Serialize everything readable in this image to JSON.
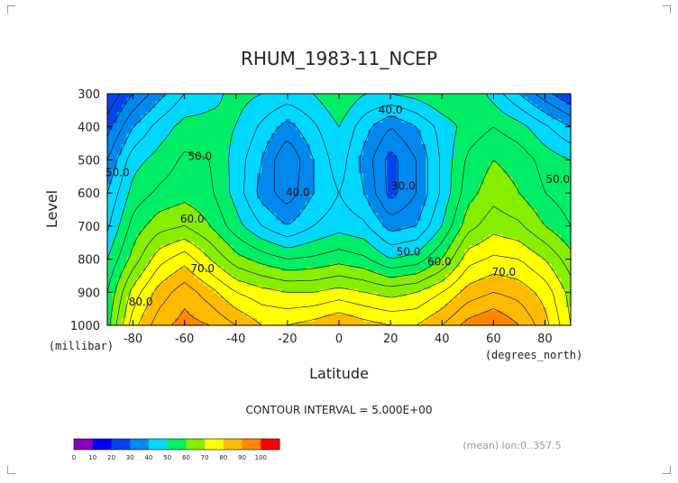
{
  "chart_data": {
    "type": "heatmap",
    "subtype": "filled-contour",
    "title": "RHUM_1983-11_NCEP",
    "xlabel": "Latitude",
    "ylabel": "Level",
    "x_unit": "(degrees_north)",
    "y_unit": "(millibar)",
    "xlim": [
      -90,
      90
    ],
    "ylim": [
      1000,
      300
    ],
    "x_ticks": [
      -80,
      -60,
      -40,
      -20,
      0,
      20,
      40,
      60,
      80
    ],
    "x_tick_labels": [
      "-80",
      "-60",
      "-40",
      "-20",
      "0",
      "20",
      "40",
      "60",
      "80"
    ],
    "y_ticks": [
      300,
      400,
      500,
      600,
      700,
      800,
      900,
      1000
    ],
    "y_tick_labels": [
      "300",
      "400",
      "500",
      "600",
      "700",
      "800",
      "900",
      "1000"
    ],
    "contour_interval_text": "CONTOUR INTERVAL = 5.000E+00",
    "footer_text": "(mean) lon:0..357.5",
    "contour_labels": [
      {
        "text": "40.0",
        "lat": 20,
        "level": 350
      },
      {
        "text": "50.0",
        "lat": -54,
        "level": 490
      },
      {
        "text": "40.0",
        "lat": -16,
        "level": 600
      },
      {
        "text": "30.0",
        "lat": 25,
        "level": 580
      },
      {
        "text": "50.0",
        "lat": -86,
        "level": 540
      },
      {
        "text": "50.0",
        "lat": 85,
        "level": 560
      },
      {
        "text": "60.0",
        "lat": -57,
        "level": 680
      },
      {
        "text": "50.0",
        "lat": 27,
        "level": 780
      },
      {
        "text": "60.0",
        "lat": 39,
        "level": 810
      },
      {
        "text": "70.0",
        "lat": -53,
        "level": 830
      },
      {
        "text": "70.0",
        "lat": 64,
        "level": 840
      },
      {
        "text": "80.0",
        "lat": -77,
        "level": 930
      }
    ],
    "levels": [
      0,
      10,
      20,
      30,
      40,
      50,
      60,
      70,
      80,
      90,
      100
    ],
    "colorbar_labels": [
      "0",
      "10",
      "20",
      "30",
      "40",
      "50",
      "60",
      "70",
      "80",
      "90",
      "100"
    ],
    "colors": [
      "#8800bb",
      "#0000ff",
      "#0044ee",
      "#0088ee",
      "#00d8ff",
      "#00ee66",
      "#88ee00",
      "#ffff00",
      "#ffbb00",
      "#ff8800",
      "#ff0000"
    ],
    "lat": [
      -90,
      -80,
      -70,
      -60,
      -50,
      -40,
      -30,
      -20,
      -10,
      0,
      10,
      20,
      30,
      40,
      50,
      60,
      70,
      80,
      90
    ],
    "pressure": [
      300,
      400,
      500,
      600,
      700,
      800,
      900,
      1000
    ],
    "values": [
      [
        20,
        30,
        38,
        45,
        48,
        52,
        50,
        48,
        50,
        55,
        50,
        50,
        52,
        55,
        55,
        48,
        40,
        32,
        25
      ],
      [
        28,
        40,
        47,
        52,
        52,
        50,
        44,
        38,
        44,
        50,
        42,
        35,
        40,
        47,
        52,
        55,
        52,
        46,
        40
      ],
      [
        35,
        48,
        52,
        56,
        55,
        48,
        40,
        30,
        40,
        48,
        38,
        28,
        35,
        46,
        56,
        60,
        58,
        53,
        50
      ],
      [
        40,
        52,
        56,
        58,
        56,
        48,
        38,
        32,
        40,
        45,
        40,
        28,
        35,
        46,
        58,
        63,
        60,
        55,
        52
      ],
      [
        44,
        57,
        63,
        65,
        60,
        52,
        45,
        40,
        45,
        48,
        46,
        38,
        40,
        50,
        63,
        68,
        66,
        60,
        55
      ],
      [
        50,
        62,
        73,
        78,
        70,
        62,
        58,
        55,
        56,
        58,
        56,
        50,
        52,
        60,
        73,
        76,
        75,
        70,
        62
      ],
      [
        55,
        72,
        82,
        88,
        82,
        75,
        72,
        70,
        70,
        72,
        70,
        68,
        70,
        75,
        82,
        85,
        83,
        78,
        68
      ],
      [
        58,
        78,
        88,
        92,
        90,
        85,
        80,
        80,
        82,
        85,
        82,
        80,
        80,
        85,
        92,
        95,
        90,
        82,
        70
      ]
    ]
  }
}
